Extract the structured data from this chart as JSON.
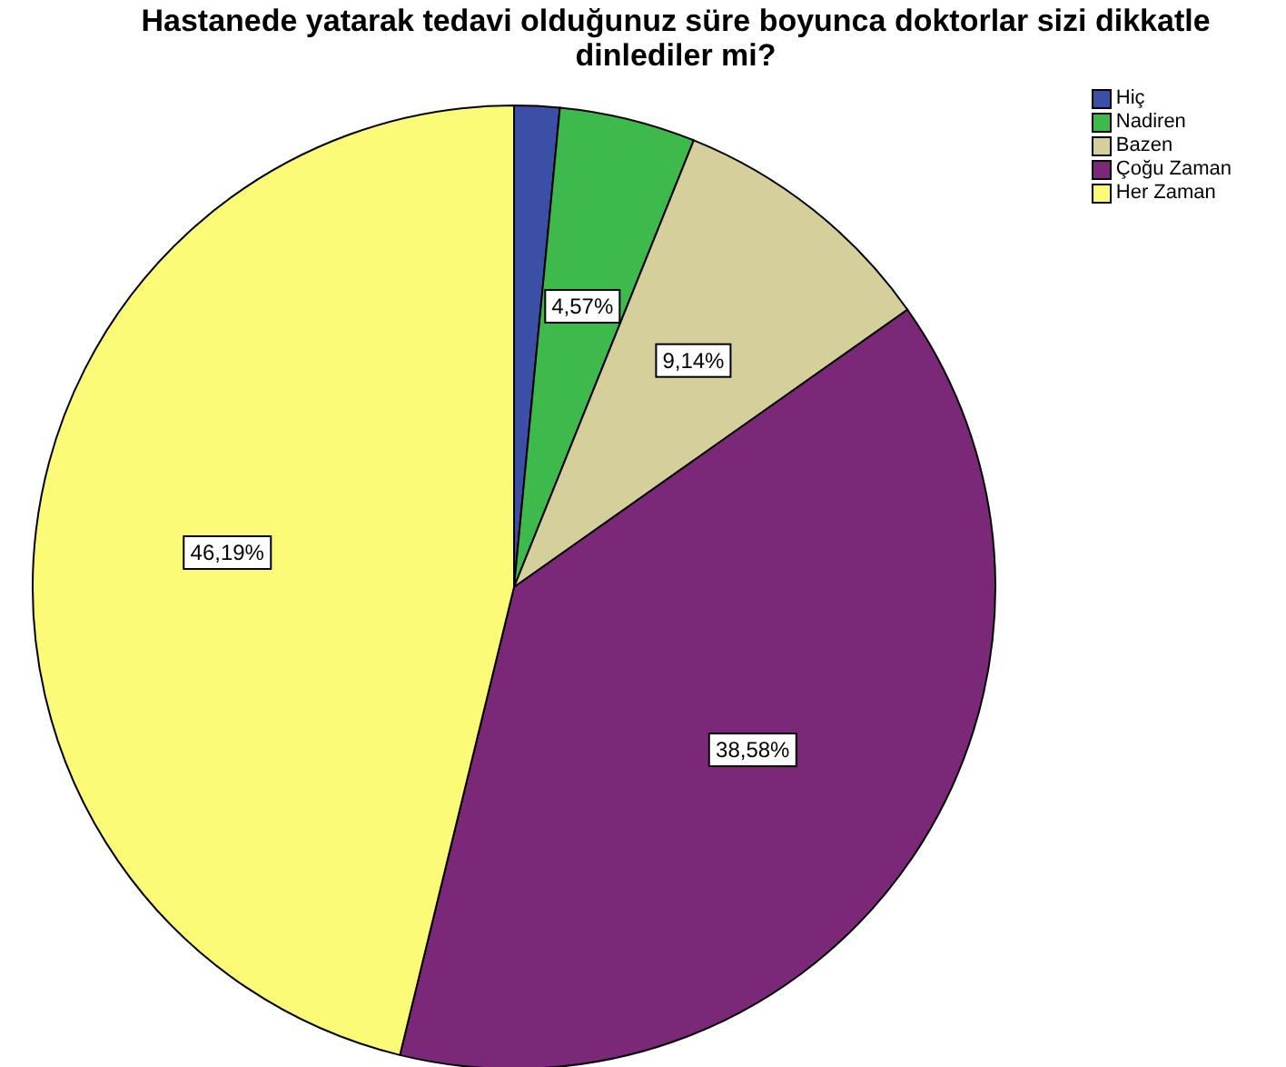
{
  "chart_data": {
    "type": "pie",
    "title": "Hastanede yatarak tedavi olduğunuz süre boyunca  doktorlar sizi dikkatle dinlediler mi?",
    "categories": [
      "Hiç",
      "Nadiren",
      "Bazen",
      "Çoğu Zaman",
      "Her Zaman"
    ],
    "values": [
      1.52,
      4.57,
      9.14,
      38.58,
      46.19
    ],
    "colors": [
      "#3b4fa6",
      "#3dba4b",
      "#d5cf9b",
      "#7b2879",
      "#fbfb78"
    ],
    "value_labels": [
      null,
      "4,57%",
      "9,14%",
      "38,58%",
      "46,19%"
    ],
    "legend": "top right"
  }
}
